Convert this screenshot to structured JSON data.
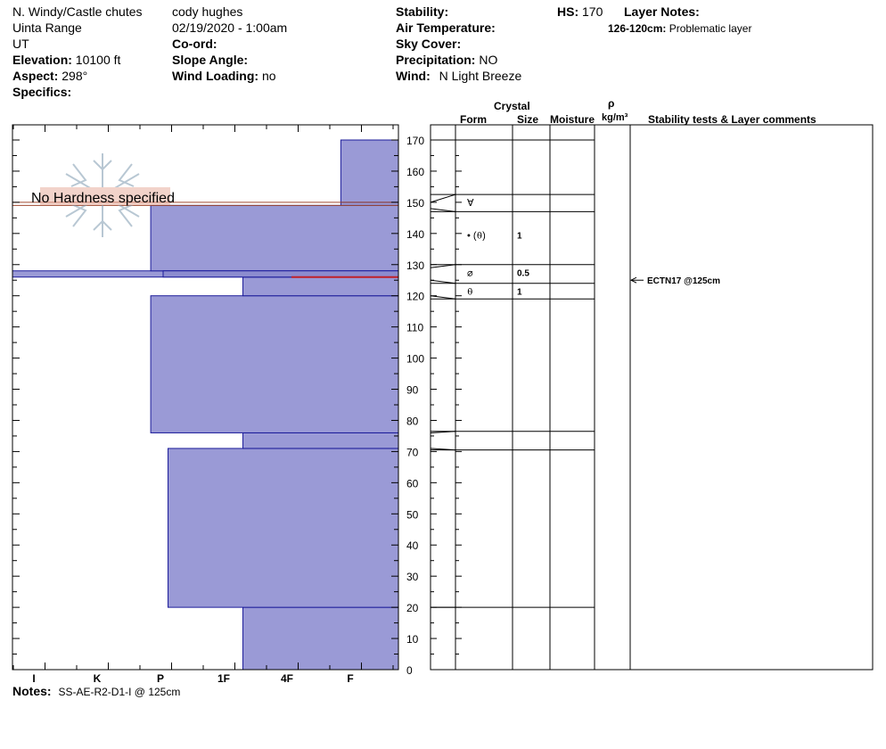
{
  "header": {
    "location": "N. Windy/Castle chutes",
    "range": "Uinta Range",
    "state": "UT",
    "elevation_label": "Elevation:",
    "elevation": "10100 ft",
    "aspect_label": "Aspect:",
    "aspect": "298°",
    "specifics_label": "Specifics:",
    "observer": "cody hughes",
    "datetime": "02/19/2020 - 1:00am",
    "coord_label": "Co-ord:",
    "slope_label": "Slope Angle:",
    "wind_loading_label": "Wind Loading:",
    "wind_loading": "no",
    "stability_label": "Stability:",
    "air_temp_label": "Air Temperature:",
    "sky_label": "Sky Cover:",
    "precip_label": "Precipitation:",
    "precip": "NO",
    "wind_label": "Wind:",
    "wind": "N Light Breeze",
    "hs_label": "HS:",
    "hs": "170",
    "layer_notes_label": "Layer Notes:",
    "layer_note_range": "126-120cm:",
    "layer_note_text": "Problematic layer"
  },
  "columns": {
    "crystal": "Crystal",
    "form": "Form",
    "size": "Size",
    "moisture": "Moisture",
    "rho": "ρ",
    "density_unit": "kg/m³",
    "stability": "Stability tests & Layer comments"
  },
  "watermark": "No Hardness specified",
  "notes_label": "Notes:",
  "notes": "SS-AE-R2-D1-I @ 125cm",
  "chart_data": {
    "type": "bar",
    "orientation": "horizontal",
    "y_unit": "cm",
    "ylim": [
      0,
      170
    ],
    "yticks": [
      "0",
      "10",
      "20",
      "30",
      "40",
      "50",
      "60",
      "70",
      "80",
      "90",
      "100",
      "110",
      "120",
      "130",
      "140",
      "150",
      "160",
      "170"
    ],
    "hardness_ticks": [
      "I",
      "K",
      "P",
      "1F",
      "4F",
      "F"
    ],
    "hardness_tick_values": [
      1,
      2,
      3,
      4,
      5,
      6
    ],
    "hardness_max": 6.7,
    "layers": [
      {
        "bottom": 0,
        "top": 20,
        "hardness": 4.0
      },
      {
        "bottom": 20,
        "top": 71,
        "hardness": 2.7
      },
      {
        "bottom": 71,
        "top": 76,
        "hardness": 4.0
      },
      {
        "bottom": 76,
        "top": 120,
        "hardness": 2.4
      },
      {
        "bottom": 120,
        "top": 126,
        "hardness": 4.0
      },
      {
        "bottom": 126,
        "top": 128,
        "hardness": 0.0
      },
      {
        "bottom": 128,
        "top": 149,
        "hardness": 2.4
      },
      {
        "bottom": 149,
        "top": 150,
        "hardness": 5.7
      },
      {
        "bottom": 150,
        "top": 170,
        "hardness": 5.7
      }
    ],
    "weak_layer_cm": 126,
    "table_lines_cm": [
      170,
      152.5,
      147,
      130,
      124,
      119,
      76.5,
      70.5,
      20
    ],
    "tick_connectors": [
      {
        "from": 150,
        "to": 152.5
      },
      {
        "from": 148,
        "to": 147
      },
      {
        "from": 129,
        "to": 130
      },
      {
        "from": 125,
        "to": 124
      },
      {
        "from": 120,
        "to": 119
      },
      {
        "from": 76,
        "to": 76.5
      },
      {
        "from": 71,
        "to": 70.5
      },
      {
        "from": 20,
        "to": 20
      }
    ],
    "crystals": [
      {
        "cm": 150,
        "form": "∀",
        "size": ""
      },
      {
        "cm": 139.5,
        "form": "• (⍬)",
        "size": "1"
      },
      {
        "cm": 127.5,
        "form": "⌀",
        "size": "0.5"
      },
      {
        "cm": 121.5,
        "form": "⍬",
        "size": "1"
      }
    ],
    "stability_tests": [
      {
        "cm": 125,
        "text": "ECTN17 @125cm"
      }
    ]
  }
}
